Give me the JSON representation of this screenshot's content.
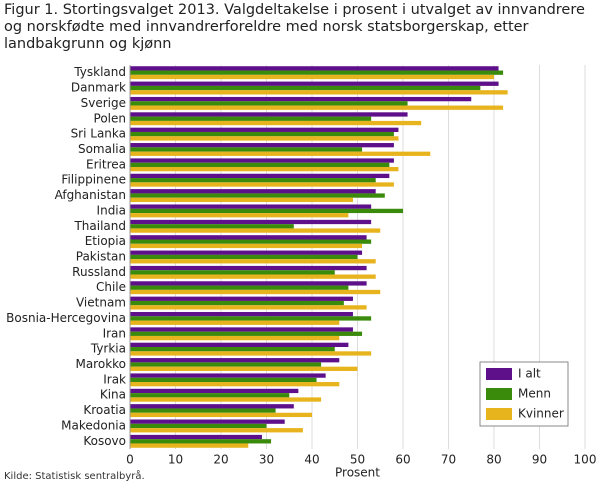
{
  "chart_data": {
    "type": "hbar",
    "title": "Figur 1. Stortingsvalget 2013. Valgdeltakelse i prosent i utvalget av innvandrere og norskfødte med innvandrerforeldre med norsk statsborgerskap, etter landbakgrunn og kjønn",
    "xlabel": "Prosent",
    "source": "Kilde: Statistisk sentralbyrå.",
    "categories": [
      "Tyskland",
      "Danmark",
      "Sverige",
      "Polen",
      "Sri Lanka",
      "Somalia",
      "Eritrea",
      "Filippinene",
      "Afghanistan",
      "India",
      "Thailand",
      "Etiopia",
      "Pakistan",
      "Russland",
      "Chile",
      "Vietnam",
      "Bosnia-Hercegovina",
      "Iran",
      "Tyrkia",
      "Marokko",
      "Irak",
      "Kina",
      "Kroatia",
      "Makedonia",
      "Kosovo"
    ],
    "series": [
      {
        "name": "I alt",
        "color": "#5e0f8a",
        "values": [
          81,
          81,
          75,
          61,
          59,
          58,
          58,
          57,
          54,
          53,
          53,
          52,
          51,
          52,
          52,
          49,
          49,
          49,
          48,
          46,
          43,
          37,
          36,
          34,
          29
        ]
      },
      {
        "name": "Menn",
        "color": "#3a8a0c",
        "values": [
          82,
          77,
          61,
          53,
          58,
          51,
          57,
          54,
          56,
          60,
          36,
          53,
          50,
          45,
          48,
          47,
          53,
          51,
          45,
          42,
          41,
          35,
          32,
          30,
          31
        ]
      },
      {
        "name": "Kvinner",
        "color": "#e8b41e",
        "values": [
          80,
          83,
          82,
          64,
          59,
          66,
          59,
          58,
          49,
          48,
          55,
          51,
          54,
          54,
          55,
          52,
          46,
          46,
          53,
          50,
          46,
          42,
          40,
          38,
          26
        ]
      }
    ],
    "xlim": [
      0,
      100
    ],
    "xticks": [
      0,
      10,
      20,
      30,
      40,
      50,
      60,
      70,
      80,
      90,
      100
    ],
    "grid": true,
    "legend": "lower right"
  }
}
